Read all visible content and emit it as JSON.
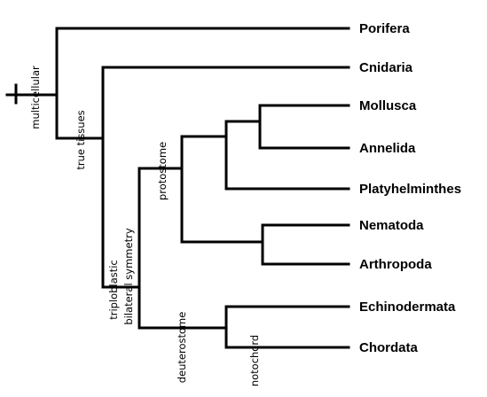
{
  "taxa": {
    "porifera": "Porifera",
    "cnidaria": "Cnidaria",
    "mollusca": "Mollusca",
    "annelida": "Annelida",
    "platyhelminthes": "Platyhelminthes",
    "nematoda": "Nematoda",
    "arthropoda": "Arthropoda",
    "echinodermata": "Echinodermata",
    "chordata": "Chordata"
  },
  "traits": {
    "multicellular": "multicellular",
    "true_tissues": "true tissues",
    "triploblastic": "triploblastic",
    "bilateral_symmetry": "bilateral symmetry",
    "protostome": "protostome",
    "deuterostome": "deuterostome",
    "notochord": "notochord"
  },
  "colors": {
    "line": "#000000",
    "text": "#000000",
    "background": "#ffffff"
  }
}
